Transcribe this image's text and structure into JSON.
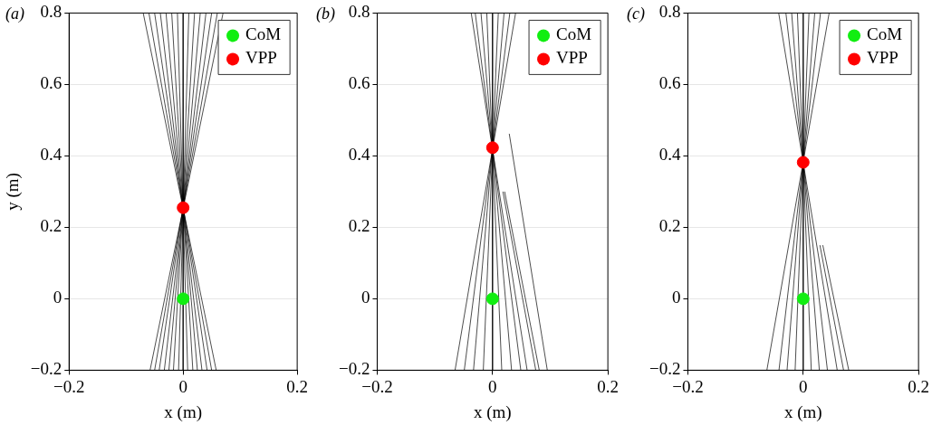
{
  "chart_data": [
    {
      "type": "line",
      "title": "(a)",
      "xlabel": "x (m)",
      "ylabel": "y (m)",
      "xlim": [
        -0.2,
        0.2
      ],
      "xticks": [
        -0.2,
        0,
        0.2
      ],
      "ylim": [
        -0.2,
        0.8
      ],
      "yticks": [
        -0.2,
        0,
        0.2,
        0.4,
        0.6,
        0.8
      ],
      "grid": "y",
      "legend": "top right",
      "series": [
        {
          "type": "line",
          "color": "#000000",
          "x": [
            -0.07,
            0.058
          ],
          "values": [
            0.8,
            -0.2
          ]
        },
        {
          "type": "line",
          "color": "#000000",
          "x": [
            -0.06,
            0.05
          ],
          "values": [
            0.8,
            -0.2
          ]
        },
        {
          "type": "line",
          "color": "#000000",
          "x": [
            -0.05,
            0.042
          ],
          "values": [
            0.8,
            -0.2
          ]
        },
        {
          "type": "line",
          "color": "#000000",
          "x": [
            -0.04,
            0.033
          ],
          "values": [
            0.8,
            -0.2
          ]
        },
        {
          "type": "line",
          "color": "#000000",
          "x": [
            -0.03,
            0.025
          ],
          "values": [
            0.8,
            -0.2
          ]
        },
        {
          "type": "line",
          "color": "#000000",
          "x": [
            -0.02,
            0.017
          ],
          "values": [
            0.8,
            -0.2
          ]
        },
        {
          "type": "line",
          "color": "#000000",
          "x": [
            -0.01,
            0.008
          ],
          "values": [
            0.8,
            -0.2
          ]
        },
        {
          "type": "line",
          "color": "#000000",
          "x": [
            0,
            0
          ],
          "values": [
            0.8,
            -0.2
          ]
        },
        {
          "type": "line",
          "color": "#000000",
          "x": [
            0.01,
            -0.008
          ],
          "values": [
            0.8,
            -0.2
          ]
        },
        {
          "type": "line",
          "color": "#000000",
          "x": [
            0.02,
            -0.017
          ],
          "values": [
            0.8,
            -0.2
          ]
        },
        {
          "type": "line",
          "color": "#000000",
          "x": [
            0.03,
            -0.025
          ],
          "values": [
            0.8,
            -0.2
          ]
        },
        {
          "type": "line",
          "color": "#000000",
          "x": [
            0.04,
            -0.033
          ],
          "values": [
            0.8,
            -0.2
          ]
        },
        {
          "type": "line",
          "color": "#000000",
          "x": [
            0.05,
            -0.042
          ],
          "values": [
            0.8,
            -0.2
          ]
        },
        {
          "type": "line",
          "color": "#000000",
          "x": [
            0.06,
            -0.05
          ],
          "values": [
            0.8,
            -0.2
          ]
        },
        {
          "type": "line",
          "color": "#000000",
          "x": [
            0.07,
            -0.058
          ],
          "values": [
            0.8,
            -0.2
          ]
        },
        {
          "name": "CoM",
          "type": "scatter",
          "marker": "circle",
          "color": "#11ee11",
          "x": [
            0
          ],
          "values": [
            0
          ]
        },
        {
          "name": "VPP",
          "type": "scatter",
          "marker": "circle",
          "color": "#ff0000",
          "x": [
            0
          ],
          "values": [
            0.255
          ]
        }
      ]
    },
    {
      "type": "line",
      "title": "(b)",
      "xlabel": "x (m)",
      "xlim": [
        -0.2,
        0.2
      ],
      "xticks": [
        -0.2,
        0,
        0.2
      ],
      "ylim": [
        -0.2,
        0.8
      ],
      "yticks": [
        -0.2,
        0,
        0.2,
        0.4,
        0.6,
        0.8
      ],
      "grid": "y",
      "legend": "top right",
      "series": [
        {
          "type": "line",
          "color": "#000000",
          "x": [
            -0.037,
            0.06
          ],
          "values": [
            0.8,
            -0.2
          ]
        },
        {
          "type": "line",
          "color": "#000000",
          "x": [
            -0.03,
            0.049
          ],
          "values": [
            0.8,
            -0.2
          ]
        },
        {
          "type": "line",
          "color": "#000000",
          "x": [
            -0.02,
            0.033
          ],
          "values": [
            0.8,
            -0.2
          ]
        },
        {
          "type": "line",
          "color": "#000000",
          "x": [
            -0.01,
            0.016
          ],
          "values": [
            0.8,
            -0.2
          ]
        },
        {
          "type": "line",
          "color": "#000000",
          "x": [
            0,
            0
          ],
          "values": [
            0.8,
            -0.2
          ]
        },
        {
          "type": "line",
          "color": "#000000",
          "x": [
            0.01,
            -0.016
          ],
          "values": [
            0.8,
            -0.2
          ]
        },
        {
          "type": "line",
          "color": "#000000",
          "x": [
            0.02,
            -0.033
          ],
          "values": [
            0.8,
            -0.2
          ]
        },
        {
          "type": "line",
          "color": "#000000",
          "x": [
            0.03,
            -0.049
          ],
          "values": [
            0.8,
            -0.2
          ]
        },
        {
          "type": "line",
          "color": "#000000",
          "x": [
            0.04,
            -0.065
          ],
          "values": [
            0.8,
            -0.2
          ]
        },
        {
          "type": "line",
          "color": "#000000",
          "x": [
            0.018,
            0.075
          ],
          "values": [
            0.3,
            -0.2
          ]
        },
        {
          "type": "line",
          "color": "#000000",
          "x": [
            0.021,
            0.081
          ],
          "values": [
            0.3,
            -0.2
          ]
        },
        {
          "type": "line",
          "color": "#000000",
          "x": [
            0.029,
            0.095
          ],
          "values": [
            0.462,
            -0.2
          ]
        },
        {
          "name": "CoM",
          "type": "scatter",
          "marker": "circle",
          "color": "#11ee11",
          "x": [
            0
          ],
          "values": [
            0
          ]
        },
        {
          "name": "VPP",
          "type": "scatter",
          "marker": "circle",
          "color": "#ff0000",
          "x": [
            0
          ],
          "values": [
            0.423
          ]
        }
      ]
    },
    {
      "type": "line",
      "title": "(c)",
      "xlabel": "x (m)",
      "xlim": [
        -0.2,
        0.2
      ],
      "xticks": [
        -0.2,
        0,
        0.2
      ],
      "ylim": [
        -0.2,
        0.8
      ],
      "yticks": [
        -0.2,
        0,
        0.2,
        0.4,
        0.6,
        0.8
      ],
      "grid": "y",
      "legend": "top right",
      "series": [
        {
          "type": "line",
          "color": "#000000",
          "x": [
            -0.0425,
            0.059
          ],
          "values": [
            0.8,
            -0.2
          ]
        },
        {
          "type": "line",
          "color": "#000000",
          "x": [
            -0.03,
            0.042
          ],
          "values": [
            0.8,
            -0.2
          ]
        },
        {
          "type": "line",
          "color": "#000000",
          "x": [
            -0.02,
            0.028
          ],
          "values": [
            0.8,
            -0.2
          ]
        },
        {
          "type": "line",
          "color": "#000000",
          "x": [
            -0.01,
            0.014
          ],
          "values": [
            0.8,
            -0.2
          ]
        },
        {
          "type": "line",
          "color": "#000000",
          "x": [
            0,
            0
          ],
          "values": [
            0.8,
            -0.2
          ]
        },
        {
          "type": "line",
          "color": "#000000",
          "x": [
            0.01,
            -0.014
          ],
          "values": [
            0.8,
            -0.2
          ]
        },
        {
          "type": "line",
          "color": "#000000",
          "x": [
            0.02,
            -0.028
          ],
          "values": [
            0.8,
            -0.2
          ]
        },
        {
          "type": "line",
          "color": "#000000",
          "x": [
            0.03,
            -0.042
          ],
          "values": [
            0.8,
            -0.2
          ]
        },
        {
          "type": "line",
          "color": "#000000",
          "x": [
            0.045,
            -0.063
          ],
          "values": [
            0.8,
            -0.2
          ]
        },
        {
          "type": "line",
          "color": "#000000",
          "x": [
            0.029,
            0.07
          ],
          "values": [
            0.15,
            -0.2
          ]
        },
        {
          "type": "line",
          "color": "#000000",
          "x": [
            0.034,
            0.079
          ],
          "values": [
            0.15,
            -0.2
          ]
        },
        {
          "name": "CoM",
          "type": "scatter",
          "marker": "circle",
          "color": "#11ee11",
          "x": [
            0
          ],
          "values": [
            0
          ]
        },
        {
          "name": "VPP",
          "type": "scatter",
          "marker": "circle",
          "color": "#ff0000",
          "x": [
            0
          ],
          "values": [
            0.382
          ]
        }
      ]
    }
  ]
}
